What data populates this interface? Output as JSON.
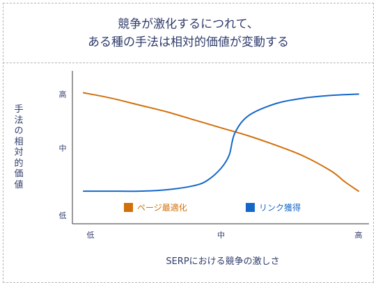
{
  "title": {
    "line1": "競争が激化するにつれて、",
    "line2": "ある種の手法は相対的価値が変動する"
  },
  "colors": {
    "text": "#2f3b6b",
    "page_optimization": "#d16f0b",
    "link_acquisition": "#1467c8",
    "dashed_border": "#b5b5b5"
  },
  "chart_data": {
    "type": "line",
    "title": "競争が激化するにつれて、ある種の手法は相対的価値が変動する",
    "xlabel": "SERPにおける競争の激しさ",
    "ylabel": "手法の相対的価値",
    "x_tick_labels": [
      "低",
      "中",
      "高"
    ],
    "y_tick_labels": [
      "高",
      "中",
      "低"
    ],
    "xlim": [
      0,
      1
    ],
    "ylim": [
      0,
      1
    ],
    "grid": false,
    "legend_position": "bottom-inside",
    "series": [
      {
        "name": "ページ最適化",
        "color": "#d16f0b",
        "x": [
          0.0,
          0.1,
          0.2,
          0.3,
          0.4,
          0.5,
          0.6,
          0.7,
          0.8,
          0.9,
          0.95,
          1.0
        ],
        "y": [
          0.91,
          0.87,
          0.82,
          0.77,
          0.71,
          0.65,
          0.59,
          0.52,
          0.44,
          0.33,
          0.25,
          0.18
        ]
      },
      {
        "name": "リンク獲得",
        "color": "#1467c8",
        "x": [
          0.0,
          0.1,
          0.2,
          0.3,
          0.4,
          0.45,
          0.5,
          0.53,
          0.55,
          0.6,
          0.7,
          0.8,
          0.9,
          1.0
        ],
        "y": [
          0.18,
          0.18,
          0.18,
          0.19,
          0.22,
          0.26,
          0.35,
          0.45,
          0.61,
          0.74,
          0.83,
          0.87,
          0.89,
          0.9
        ]
      }
    ]
  }
}
